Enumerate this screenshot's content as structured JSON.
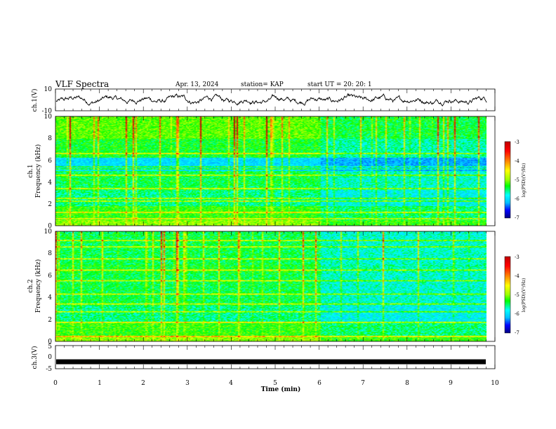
{
  "header": {
    "title": "VLF Spectra",
    "date": "Apr. 13, 2024",
    "station": "station= KAP",
    "start_ut": "start  UT  =   20: 20: 1"
  },
  "colorbar": {
    "label": "log(PSD)(V²/Hz)",
    "ticks": [
      "-3",
      "-4",
      "-5",
      "-6",
      "-7"
    ]
  },
  "colors": {
    "trace": "#000000",
    "colormap": [
      "#000080",
      "#0000ff",
      "#00bfff",
      "#00ffff",
      "#00ff00",
      "#9aff00",
      "#ffff00",
      "#ff8000",
      "#ff0000",
      "#c00000"
    ]
  },
  "chart_data": [
    {
      "type": "line",
      "ylabel": "ch.1(V)",
      "ylim": [
        -10,
        10
      ],
      "yticks": [
        "10",
        "-10"
      ],
      "xlim": [
        0,
        10
      ],
      "note": "waveform trace oscillating roughly between -5 and 5 V"
    },
    {
      "type": "heatmap",
      "ylabel": "ch.1\nFrequency (kHz)",
      "ylabel_lines": [
        "ch.1",
        "Frequency (kHz)"
      ],
      "ylim": [
        0,
        10
      ],
      "yticks": [
        "0",
        "2",
        "4",
        "6",
        "8",
        "10"
      ],
      "xlim": [
        0,
        9.8
      ],
      "zlim": [
        -7,
        -3
      ],
      "change_time_min": 6,
      "horizontal_lines_khz": [
        0.6,
        1.2,
        2.2,
        2.5,
        3.4,
        4.6,
        5.2,
        5.4,
        6.6
      ]
    },
    {
      "type": "heatmap",
      "ylabel": "ch.2\nFrequency (kHz)",
      "ylabel_lines": [
        "ch.2",
        "Frequency (kHz)"
      ],
      "ylim": [
        0,
        10
      ],
      "yticks": [
        "0",
        "2",
        "4",
        "6",
        "8",
        "10"
      ],
      "xlim": [
        0,
        9.8
      ],
      "zlim": [
        -7,
        -3
      ],
      "change_time_min": 6,
      "horizontal_lines_khz": [
        0.4,
        1.7,
        2.7,
        3.4,
        4.3,
        5.5,
        6.5,
        7.5,
        8.6,
        9.2
      ]
    },
    {
      "type": "line",
      "ylabel": "ch.3(V)",
      "ylim": [
        -5,
        5
      ],
      "yticks": [
        "5",
        "0",
        "-5"
      ],
      "xlim": [
        0,
        10
      ],
      "y_value": -2,
      "note": "thick constant bar near -2 V"
    }
  ],
  "xaxis": {
    "label": "Time  (min)",
    "range": [
      0,
      10
    ],
    "ticks": [
      "0",
      "1",
      "2",
      "3",
      "4",
      "5",
      "6",
      "7",
      "8",
      "9",
      "10"
    ]
  }
}
